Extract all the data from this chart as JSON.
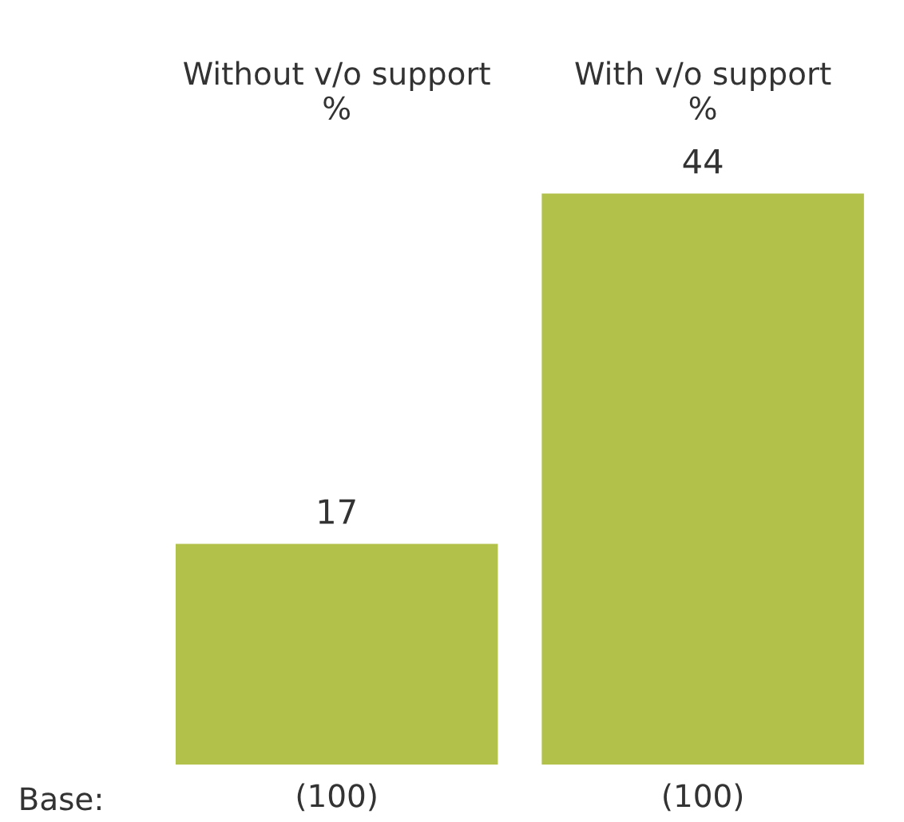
{
  "chart_data": {
    "type": "bar",
    "categories": [
      "Without v/o support\n%",
      "With v/o support\n%"
    ],
    "values": [
      17,
      44
    ],
    "color": "#b2c14a",
    "data_labels": true,
    "annotations": [
      "Base:",
      "(100)",
      "(100)"
    ]
  }
}
